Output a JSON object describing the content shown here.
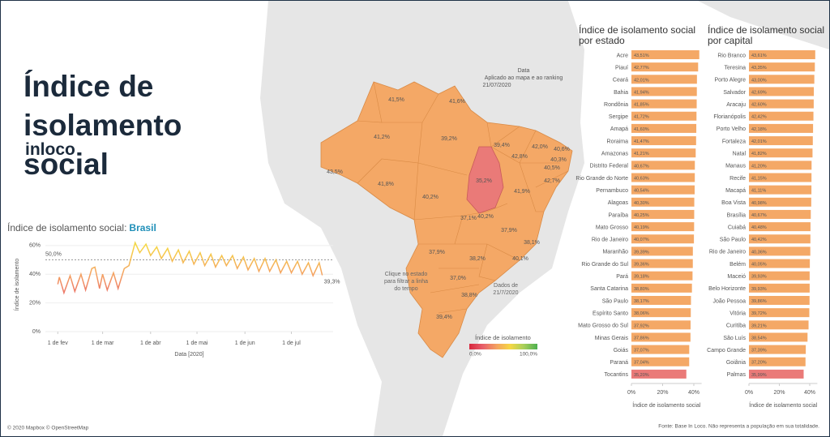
{
  "header": {
    "title": "Índice de isolamento social",
    "brand": "inloco",
    "filter_label": "Data",
    "filter_note": "Aplicado ao mapa e ao ranking",
    "filter_value": "21/07/2020",
    "attribution": "© 2020 Mapbox © OpenStreetMap",
    "source": "Fonte: Base In Loco. Não representa a população em sua totalidade."
  },
  "map": {
    "legend_title": "Índice de isolamento",
    "legend_min": "0,0%",
    "legend_max": "100,0%",
    "hint": "Clique no estado para filtrar a linha do tempo",
    "date_note": "Dados de 21/7/2020",
    "labels": [
      "41,5%",
      "41,6%",
      "41,2%",
      "39,2%",
      "39,4%",
      "42,0%",
      "40,6%",
      "40,3%",
      "40,5%",
      "42,8%",
      "42,7%",
      "43,5%",
      "41,8%",
      "40,2%",
      "35,2%",
      "41,9%",
      "37,1%",
      "40,2%",
      "37,9%",
      "38,1%",
      "37,9%",
      "38,2%",
      "40,1%",
      "37,0%",
      "38,8%",
      "39,4%"
    ],
    "color_scale": [
      "#d7263d",
      "#e8606b",
      "#f4a261",
      "#f6d743",
      "#a8cf5a",
      "#4caf50"
    ]
  },
  "chart_data": [
    {
      "type": "line",
      "title": "Índice de isolamento social:",
      "title_highlight": "Brasil",
      "x_label": "Data [2020]",
      "y_label": "Índice de isolamento",
      "x": [
        "2020-02-01",
        "2020-02-02",
        "2020-02-05",
        "2020-02-09",
        "2020-02-12",
        "2020-02-16",
        "2020-02-19",
        "2020-02-23",
        "2020-02-25",
        "2020-02-28",
        "2020-03-01",
        "2020-03-04",
        "2020-03-08",
        "2020-03-11",
        "2020-03-15",
        "2020-03-18",
        "2020-03-22",
        "2020-03-25",
        "2020-03-29",
        "2020-04-01",
        "2020-04-05",
        "2020-04-08",
        "2020-04-12",
        "2020-04-15",
        "2020-04-19",
        "2020-04-22",
        "2020-04-26",
        "2020-04-29",
        "2020-05-03",
        "2020-05-06",
        "2020-05-10",
        "2020-05-13",
        "2020-05-17",
        "2020-05-20",
        "2020-05-24",
        "2020-05-27",
        "2020-05-31",
        "2020-06-03",
        "2020-06-07",
        "2020-06-10",
        "2020-06-14",
        "2020-06-17",
        "2020-06-21",
        "2020-06-24",
        "2020-06-28",
        "2020-07-01",
        "2020-07-05",
        "2020-07-08",
        "2020-07-12",
        "2020-07-15",
        "2020-07-19",
        "2020-07-21"
      ],
      "series": [
        {
          "values": [
            33,
            38,
            27,
            39,
            28,
            40,
            29,
            44,
            45,
            30,
            40,
            29,
            41,
            30,
            44,
            46,
            62,
            55,
            61,
            53,
            59,
            51,
            58,
            49,
            57,
            48,
            56,
            47,
            55,
            46,
            54,
            45,
            53,
            46,
            53,
            44,
            52,
            43,
            51,
            42,
            51,
            42,
            50,
            41,
            49,
            41,
            49,
            40,
            48,
            39,
            48,
            39.3
          ],
          "value_labels": [
            null,
            null,
            null,
            null,
            null,
            null,
            null,
            null,
            null,
            null,
            null,
            null,
            null,
            null,
            null,
            null,
            null,
            null,
            null,
            null,
            null,
            null,
            null,
            null,
            null,
            null,
            null,
            null,
            null,
            null,
            null,
            null,
            null,
            null,
            null,
            null,
            null,
            null,
            null,
            null,
            null,
            null,
            null,
            null,
            null,
            null,
            null,
            null,
            null,
            null,
            null,
            "39,3%"
          ]
        }
      ],
      "xlim": [
        "2020-01-24",
        "2020-07-28"
      ],
      "xticks": [
        {
          "value": "2020-02-01",
          "label": "1 de fev"
        },
        {
          "value": "2020-03-01",
          "label": "1 de mar"
        },
        {
          "value": "2020-04-01",
          "label": "1 de abr"
        },
        {
          "value": "2020-05-01",
          "label": "1 de mai"
        },
        {
          "value": "2020-06-01",
          "label": "1 de jun"
        },
        {
          "value": "2020-07-01",
          "label": "1 de jul"
        }
      ],
      "ylim": [
        0,
        65
      ],
      "yticks": [
        {
          "value": 0,
          "label": "0%"
        },
        {
          "value": 20,
          "label": "20%"
        },
        {
          "value": 40,
          "label": "40%"
        },
        {
          "value": 60,
          "label": "60%"
        }
      ],
      "reference_line": {
        "value": 50,
        "label": "50,0%"
      },
      "grid": true
    },
    {
      "type": "bar",
      "orientation": "horizontal",
      "title": "Índice de isolamento social por estado",
      "x_label": "Índice de isolamento social",
      "categories": [
        "Acre",
        "Piauí",
        "Ceará",
        "Bahia",
        "Rondônia",
        "Sergipe",
        "Amapá",
        "Roraima",
        "Amazonas",
        "Distrito Federal",
        "Rio Grande do Norte",
        "Pernambuco",
        "Alagoas",
        "Paraíba",
        "Mato Grosso",
        "Rio de Janeiro",
        "Maranhão",
        "Rio Grande do Sul",
        "Pará",
        "Santa Catarina",
        "São Paulo",
        "Espírito Santo",
        "Mato Grosso do Sul",
        "Minas Gerais",
        "Goiás",
        "Paraná",
        "Tocantins"
      ],
      "values": [
        43.51,
        42.77,
        42.01,
        41.94,
        41.85,
        41.72,
        41.6,
        41.47,
        41.21,
        40.67,
        40.63,
        40.54,
        40.3,
        40.25,
        40.19,
        40.07,
        39.39,
        39.36,
        39.18,
        38.8,
        38.17,
        38.06,
        37.92,
        37.86,
        37.07,
        37.04,
        35.2
      ],
      "value_labels": [
        "43,51%",
        "42,77%",
        "42,01%",
        "41,94%",
        "41,85%",
        "41,72%",
        "41,60%",
        "41,47%",
        "41,21%",
        "40,67%",
        "40,63%",
        "40,54%",
        "40,30%",
        "40,25%",
        "40,19%",
        "40,07%",
        "39,39%",
        "39,36%",
        "39,18%",
        "38,80%",
        "38,17%",
        "38,06%",
        "37,92%",
        "37,86%",
        "37,07%",
        "37,04%",
        "35,20%"
      ],
      "color": "#f4a866",
      "highlight_color": "#ea7a78",
      "highlight": [
        "Tocantins"
      ],
      "xlim": [
        0,
        45
      ],
      "xticks": [
        {
          "value": 0,
          "label": "0%"
        },
        {
          "value": 20,
          "label": "20%"
        },
        {
          "value": 40,
          "label": "40%"
        }
      ]
    },
    {
      "type": "bar",
      "orientation": "horizontal",
      "title": "Índice de isolamento social por capital",
      "x_label": "Índice de isolamento social",
      "categories": [
        "Rio Branco",
        "Teresina",
        "Porto Alegre",
        "Salvador",
        "Aracaju",
        "Florianópolis",
        "Porto Velho",
        "Fortaleza",
        "Natal",
        "Manaus",
        "Recife",
        "Macapá",
        "Boa Vista",
        "Brasília",
        "Cuiabá",
        "São Paulo",
        "Rio de Janeiro",
        "Belém",
        "Maceió",
        "Belo Horizonte",
        "João Pessoa",
        "Vitória",
        "Curitiba",
        "São Luís",
        "Campo Grande",
        "Goiânia",
        "Palmas"
      ],
      "values": [
        43.61,
        43.35,
        43.0,
        42.69,
        42.6,
        42.42,
        42.18,
        42.01,
        41.82,
        41.2,
        41.15,
        41.11,
        40.98,
        40.67,
        40.48,
        40.42,
        40.36,
        40.05,
        39.93,
        39.93,
        39.86,
        39.72,
        39.21,
        38.54,
        37.39,
        37.2,
        35.99
      ],
      "value_labels": [
        "43,61%",
        "43,35%",
        "43,00%",
        "42,69%",
        "42,60%",
        "42,42%",
        "42,18%",
        "42,01%",
        "41,82%",
        "41,20%",
        "41,15%",
        "41,11%",
        "40,98%",
        "40,67%",
        "40,48%",
        "40,42%",
        "40,36%",
        "40,05%",
        "39,93%",
        "39,93%",
        "39,86%",
        "39,72%",
        "39,21%",
        "38,54%",
        "37,39%",
        "37,20%",
        "35,99%"
      ],
      "color": "#f4a866",
      "highlight_color": "#ea7a78",
      "highlight": [
        "Palmas"
      ],
      "xlim": [
        0,
        45
      ],
      "xticks": [
        {
          "value": 0,
          "label": "0%"
        },
        {
          "value": 20,
          "label": "20%"
        },
        {
          "value": 40,
          "label": "40%"
        }
      ]
    }
  ]
}
